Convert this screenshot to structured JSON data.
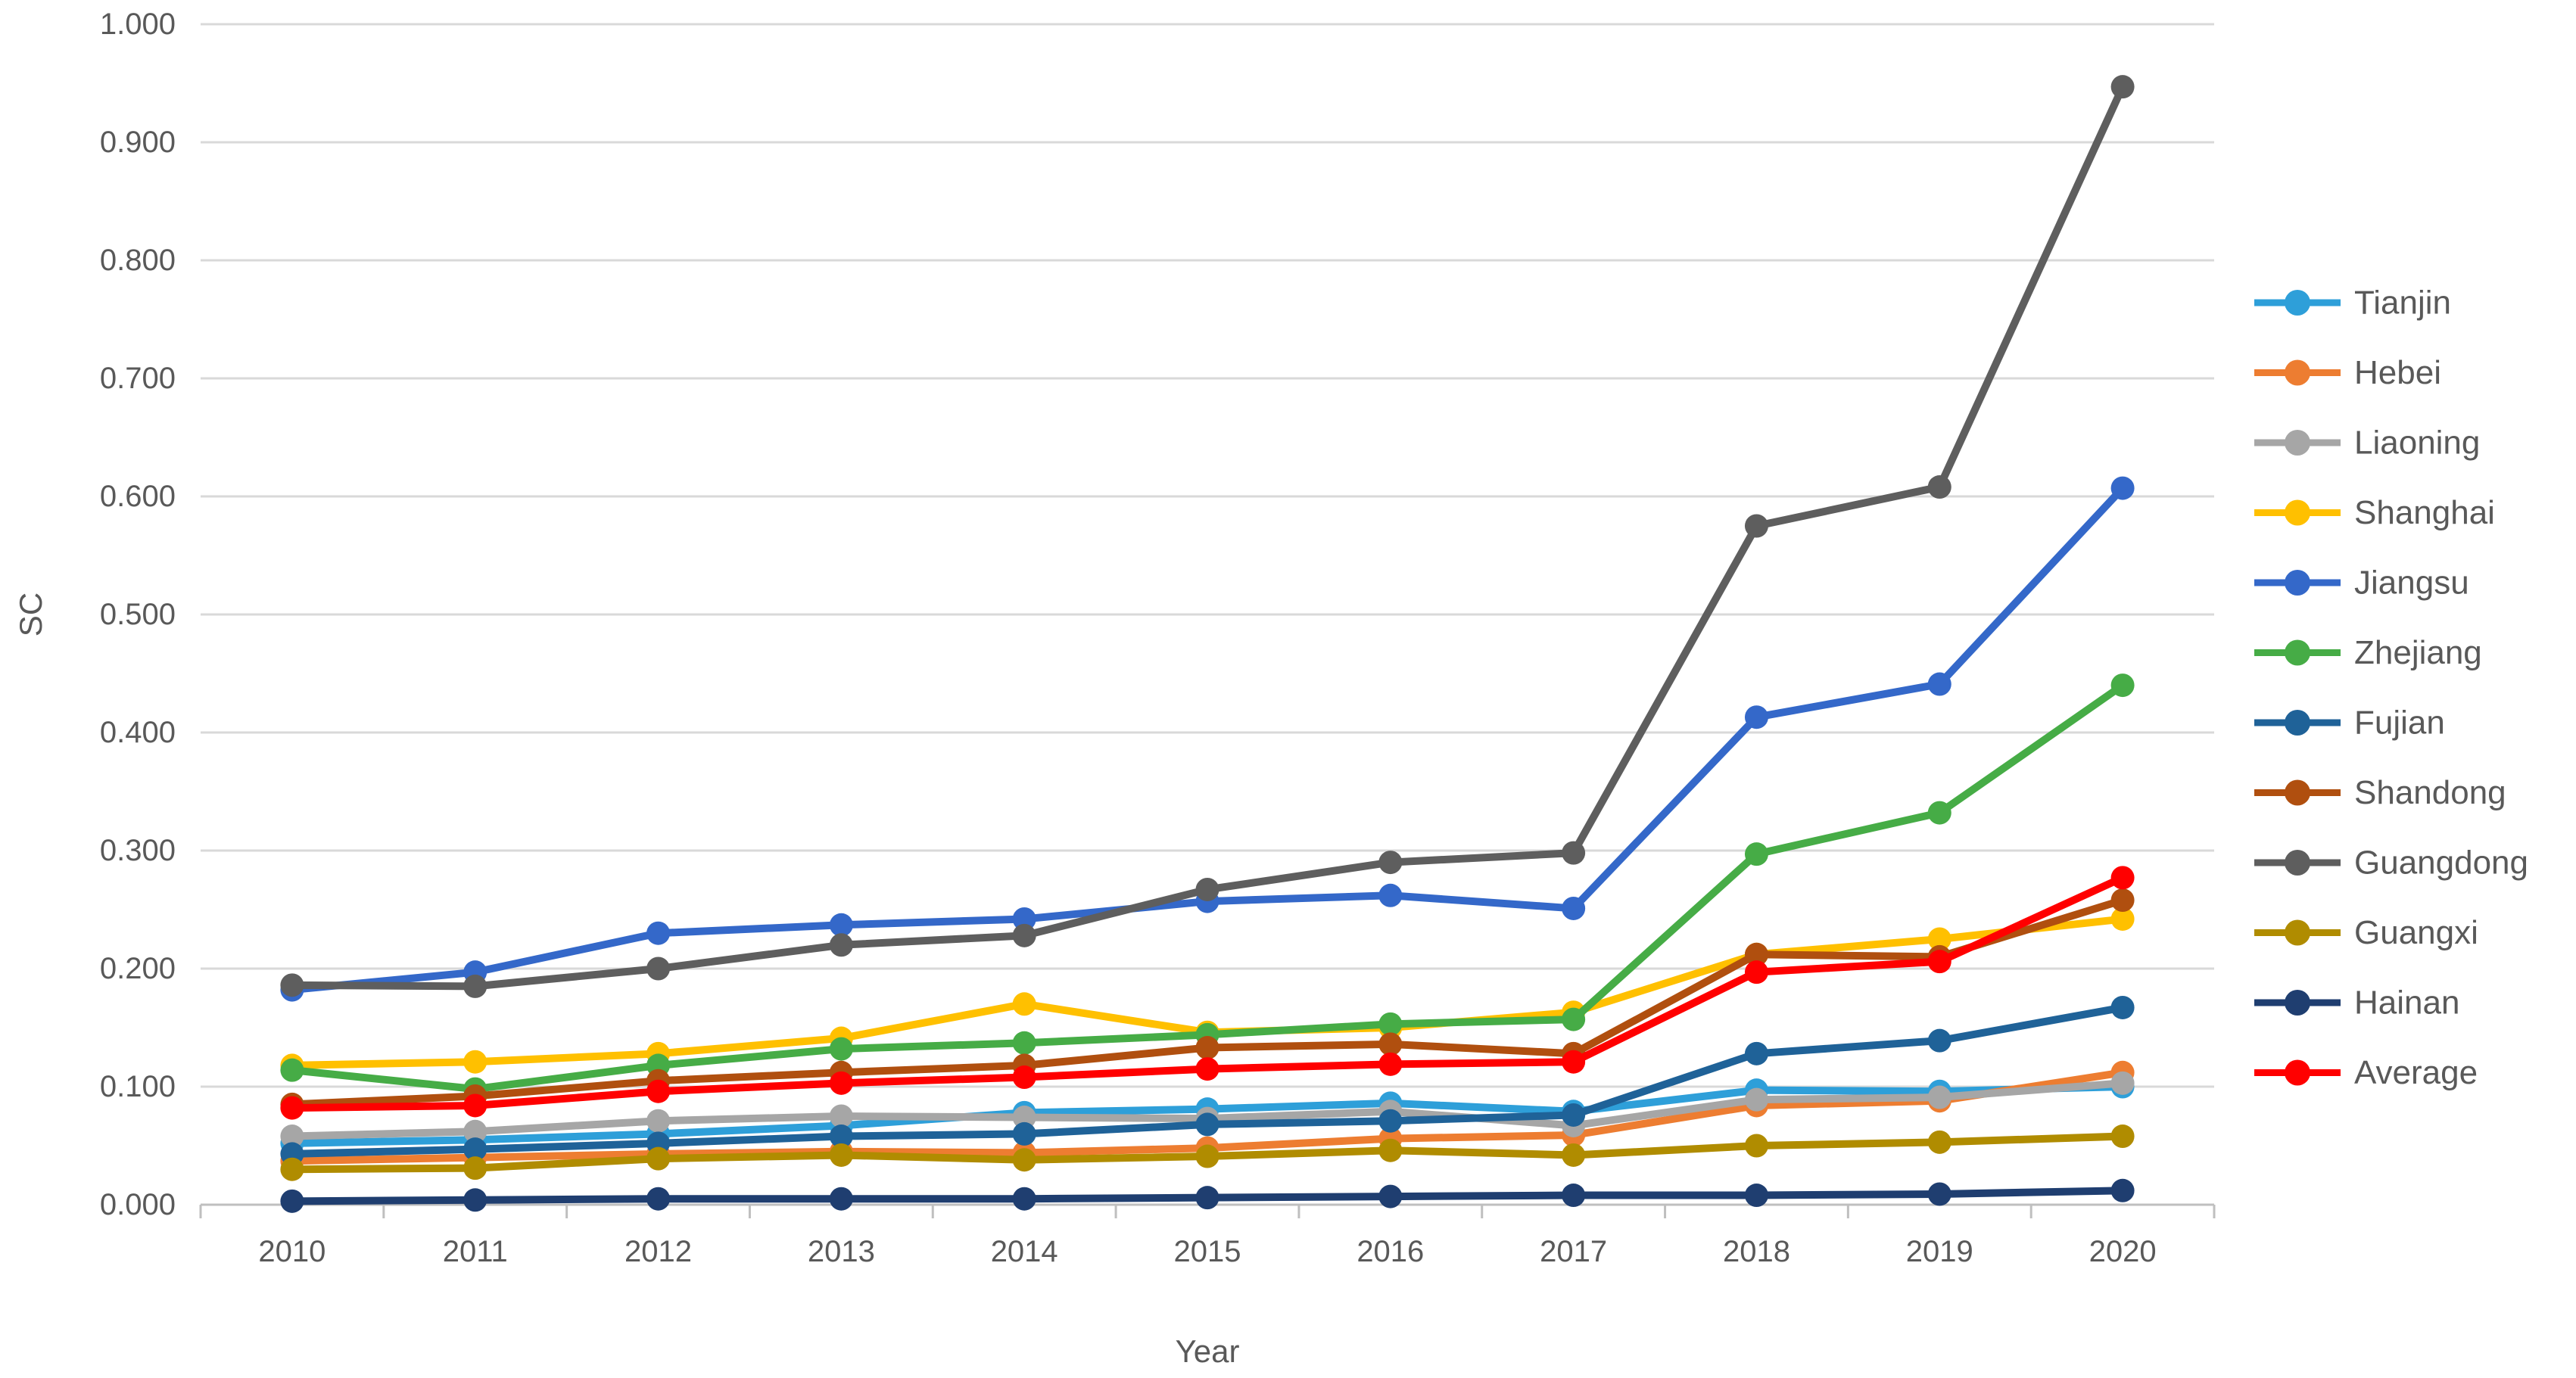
{
  "figure": {
    "background": "#FFFFFF"
  },
  "colors": {
    "grid": "#D9D9D9",
    "axis": "#BFBFBF",
    "text": "#595959",
    "background": "#FFFFFF"
  },
  "chart_data": {
    "type": "line",
    "title": "",
    "xlabel": "Year",
    "ylabel": "SC",
    "categories": [
      "2010",
      "2011",
      "2012",
      "2013",
      "2014",
      "2015",
      "2016",
      "2017",
      "2018",
      "2019",
      "2020"
    ],
    "ylim": [
      0.0,
      1.0
    ],
    "ytick_step": 0.1,
    "y_tick_labels": [
      "0.000",
      "0.100",
      "0.200",
      "0.300",
      "0.400",
      "0.500",
      "0.600",
      "0.700",
      "0.800",
      "0.900",
      "1.000"
    ],
    "grid": true,
    "legend_position": "right",
    "marker": "circle",
    "series": [
      {
        "name": "Tianjin",
        "color": "#2E9FD9",
        "values": [
          0.052,
          0.055,
          0.06,
          0.067,
          0.078,
          0.081,
          0.086,
          0.079,
          0.097,
          0.096,
          0.1
        ]
      },
      {
        "name": "Hebei",
        "color": "#ED7D31",
        "values": [
          0.037,
          0.04,
          0.043,
          0.045,
          0.044,
          0.048,
          0.056,
          0.059,
          0.084,
          0.088,
          0.112
        ]
      },
      {
        "name": "Liaoning",
        "color": "#A6A6A6",
        "values": [
          0.058,
          0.062,
          0.071,
          0.075,
          0.074,
          0.073,
          0.079,
          0.067,
          0.089,
          0.091,
          0.103
        ]
      },
      {
        "name": "Shanghai",
        "color": "#FFC000",
        "values": [
          0.118,
          0.121,
          0.128,
          0.141,
          0.17,
          0.146,
          0.15,
          0.163,
          0.212,
          0.225,
          0.242
        ]
      },
      {
        "name": "Jiangsu",
        "color": "#3468C9",
        "values": [
          0.182,
          0.197,
          0.23,
          0.237,
          0.242,
          0.257,
          0.262,
          0.251,
          0.413,
          0.441,
          0.607
        ]
      },
      {
        "name": "Zhejiang",
        "color": "#46AC46",
        "values": [
          0.114,
          0.098,
          0.118,
          0.132,
          0.137,
          0.144,
          0.153,
          0.157,
          0.297,
          0.332,
          0.44
        ]
      },
      {
        "name": "Fujian",
        "color": "#1F6298",
        "values": [
          0.043,
          0.047,
          0.052,
          0.058,
          0.06,
          0.068,
          0.071,
          0.076,
          0.128,
          0.139,
          0.167
        ]
      },
      {
        "name": "Shandong",
        "color": "#B04F0F",
        "values": [
          0.085,
          0.092,
          0.105,
          0.112,
          0.118,
          0.133,
          0.136,
          0.128,
          0.212,
          0.21,
          0.258
        ]
      },
      {
        "name": "Guangdong",
        "color": "#5E5E5E",
        "values": [
          0.186,
          0.185,
          0.2,
          0.22,
          0.228,
          0.267,
          0.29,
          0.298,
          0.575,
          0.608,
          0.947
        ]
      },
      {
        "name": "Guangxi",
        "color": "#B08C00",
        "values": [
          0.03,
          0.031,
          0.039,
          0.042,
          0.038,
          0.041,
          0.046,
          0.042,
          0.05,
          0.053,
          0.058
        ]
      },
      {
        "name": "Hainan",
        "color": "#1F3E70",
        "values": [
          0.003,
          0.004,
          0.005,
          0.005,
          0.005,
          0.006,
          0.007,
          0.008,
          0.008,
          0.009,
          0.012
        ]
      },
      {
        "name": "Average",
        "color": "#FF0000",
        "values": [
          0.082,
          0.084,
          0.096,
          0.103,
          0.108,
          0.115,
          0.119,
          0.121,
          0.197,
          0.206,
          0.277
        ]
      }
    ]
  }
}
